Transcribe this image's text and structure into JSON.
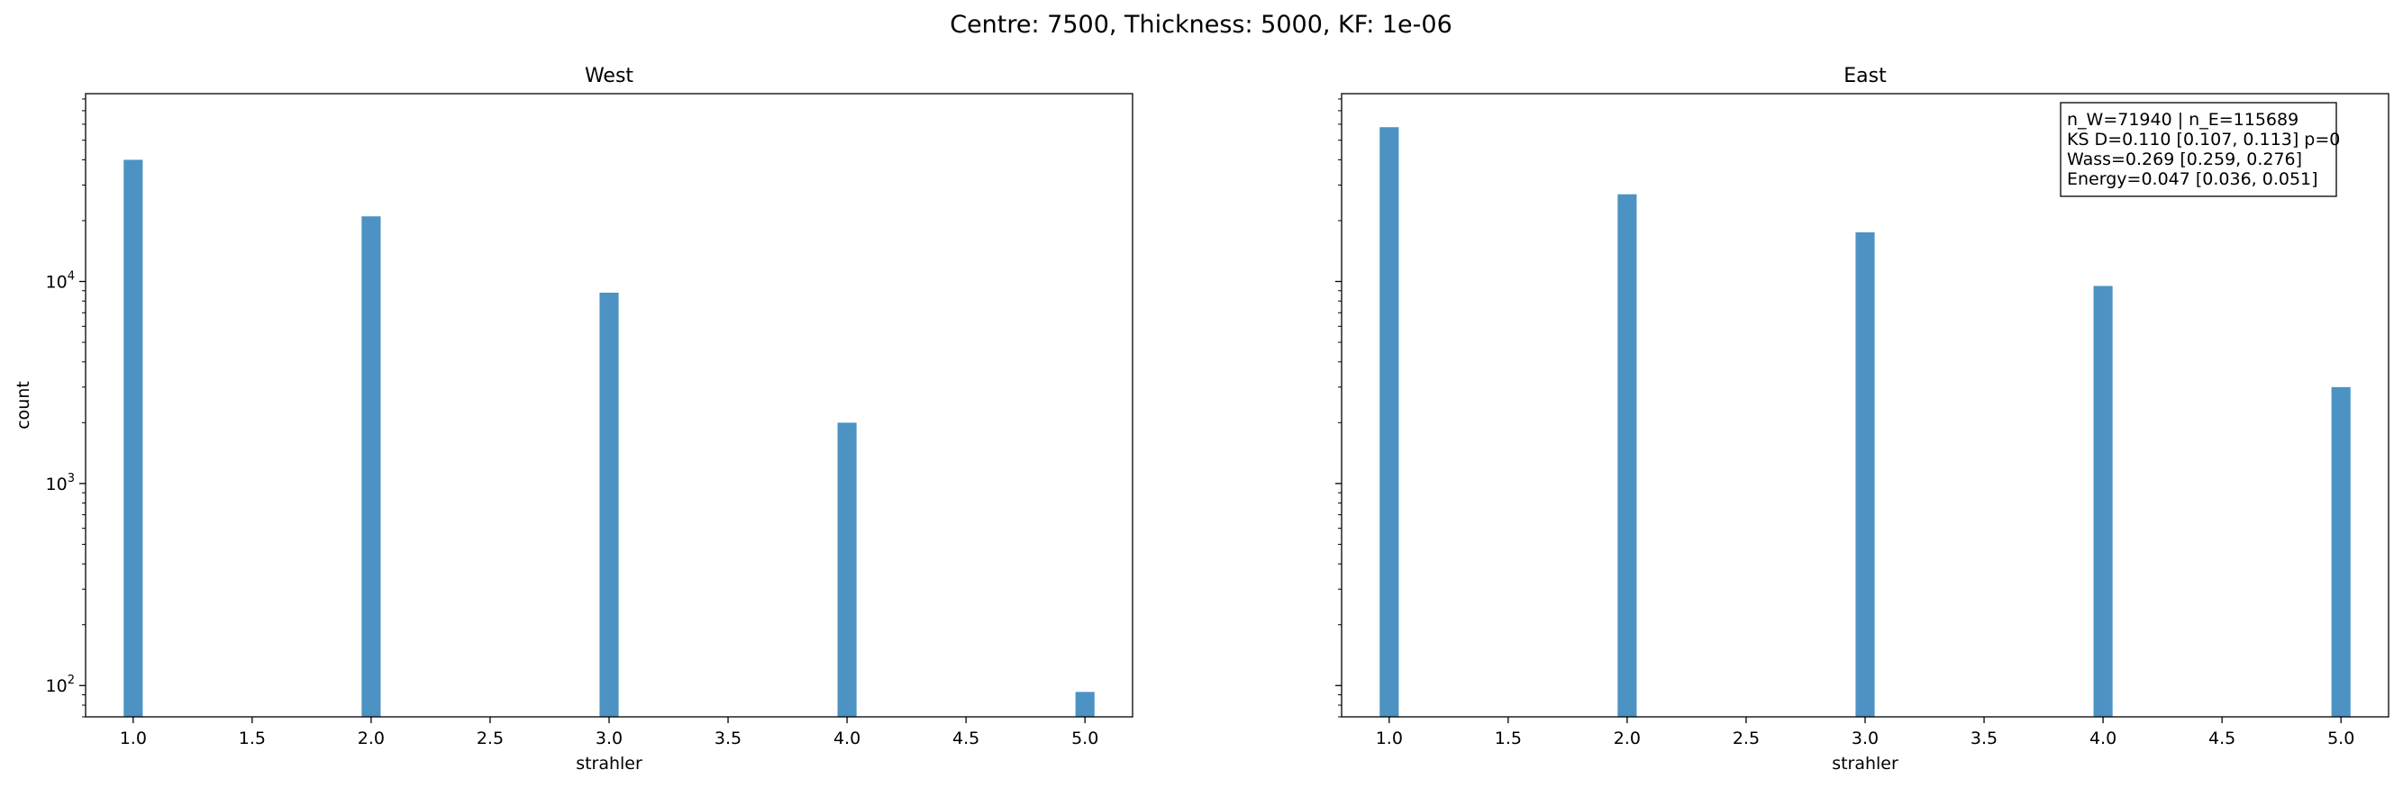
{
  "figure": {
    "suptitle": "Centre: 7500, Thickness: 5000, KF: 1e-06"
  },
  "chart_data": [
    {
      "type": "bar",
      "title": "West",
      "xlabel": "strahler",
      "ylabel": "count",
      "yscale": "log",
      "x": [
        1.0,
        2.0,
        3.0,
        4.0,
        5.0
      ],
      "values": [
        40000,
        21000,
        8800,
        2000,
        93
      ],
      "xlim": [
        0.8,
        5.2
      ],
      "ylim": [
        70,
        85000
      ],
      "xticks": [
        "1.0",
        "1.5",
        "2.0",
        "2.5",
        "3.0",
        "3.5",
        "4.0",
        "4.5",
        "5.0"
      ],
      "yticks": [
        {
          "base": "10",
          "exp": "2",
          "value": 100
        },
        {
          "base": "10",
          "exp": "3",
          "value": 1000
        },
        {
          "base": "10",
          "exp": "4",
          "value": 10000
        }
      ],
      "bar_color": "#4c93c3",
      "grid": false
    },
    {
      "type": "bar",
      "title": "East",
      "xlabel": "strahler",
      "ylabel": "",
      "yscale": "log",
      "sharey": true,
      "x": [
        1.0,
        2.0,
        3.0,
        4.0,
        5.0
      ],
      "values": [
        58000,
        27000,
        17500,
        9500,
        3000
      ],
      "xlim": [
        0.8,
        5.2
      ],
      "ylim": [
        70,
        85000
      ],
      "xticks": [
        "1.0",
        "1.5",
        "2.0",
        "2.5",
        "3.0",
        "3.5",
        "4.0",
        "4.5",
        "5.0"
      ],
      "bar_color": "#4c93c3",
      "grid": false,
      "annotation": [
        "n_W=71940 | n_E=115689",
        "KS D=0.110 [0.107, 0.113]  p=0",
        "Wass=0.269 [0.259, 0.276]",
        "Energy=0.047 [0.036, 0.051]"
      ],
      "annotation_position": "top-right"
    }
  ]
}
